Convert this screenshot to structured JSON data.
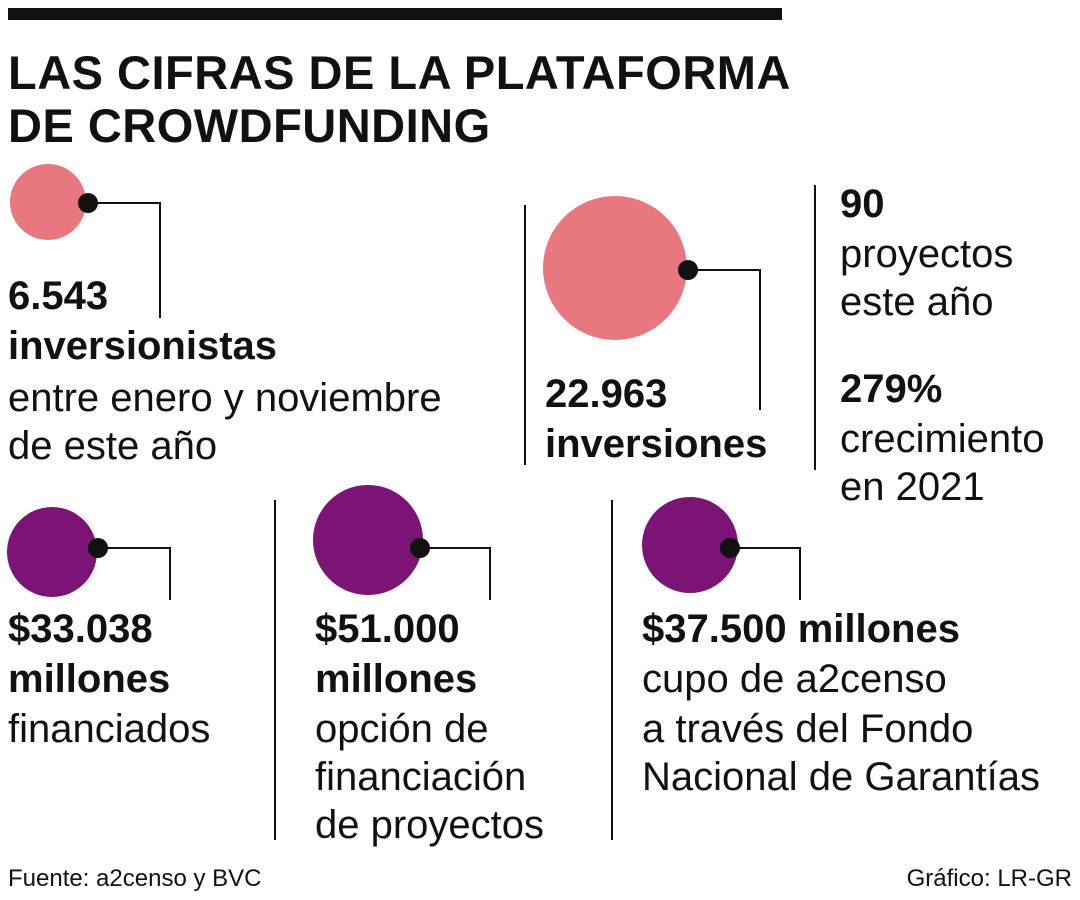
{
  "header": {
    "title": [
      "LAS CIFRAS DE LA PLATAFORMA",
      "DE CROWDFUNDING"
    ]
  },
  "items": [
    {
      "value": "6.543",
      "unit": "inversionistas",
      "description": [
        "entre enero y noviembre",
        "de este año"
      ]
    },
    {
      "value": "22.963",
      "unit": "inversiones",
      "description": []
    },
    {
      "stats": [
        {
          "value": "90",
          "description": [
            "proyectos",
            "este año"
          ]
        },
        {
          "value": "279%",
          "description": [
            "crecimiento",
            "en 2021"
          ]
        }
      ]
    },
    {
      "value": "$33.038",
      "unit": "millones",
      "description": [
        "financiados"
      ]
    },
    {
      "value": "$51.000",
      "unit": "millones",
      "description": [
        "opción de",
        "financiación",
        "de proyectos"
      ]
    },
    {
      "value": "$37.500 millones",
      "description": [
        "cupo de a2censo",
        "a través del Fondo",
        "Nacional de Garantías"
      ]
    }
  ],
  "footer": {
    "source": "Fuente: a2censo y BVC",
    "credit": "Gráfico: LR-GR"
  }
}
